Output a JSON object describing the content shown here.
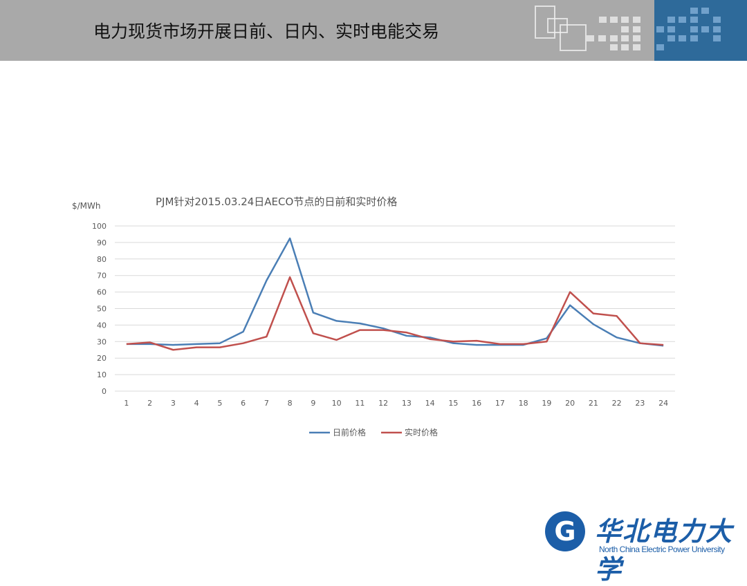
{
  "slide": {
    "title": "电力现货市场开展日前、日内、实时电能交易"
  },
  "logo": {
    "cn": "华北电力大学",
    "en": "North China Electric Power University",
    "color": "#1c5ea8"
  },
  "chart_data": {
    "type": "line",
    "title": "PJM针对2015.03.24日AECO节点的日前和实时价格",
    "ylabel": "$/MWh",
    "xlabel": "",
    "ylim": [
      0,
      100
    ],
    "yticks": [
      0,
      10,
      20,
      30,
      40,
      50,
      60,
      70,
      80,
      90,
      100
    ],
    "categories": [
      "1",
      "2",
      "3",
      "4",
      "5",
      "6",
      "7",
      "8",
      "9",
      "10",
      "11",
      "12",
      "13",
      "14",
      "15",
      "16",
      "17",
      "18",
      "19",
      "20",
      "21",
      "22",
      "23",
      "24"
    ],
    "grid": true,
    "legend": "bottom",
    "series": [
      {
        "name": "日前价格",
        "color": "#4a7eb5",
        "values": [
          28.5,
          28.5,
          28,
          28.5,
          29,
          36,
          67,
          92.5,
          47.5,
          42.5,
          41,
          38,
          33.5,
          32.5,
          29,
          28,
          28,
          28,
          32,
          52,
          40.5,
          32.5,
          29,
          27.5
        ]
      },
      {
        "name": "实时价格",
        "color": "#c0504d",
        "values": [
          28.5,
          29.5,
          25,
          26.5,
          26.5,
          29,
          33,
          69,
          35,
          31,
          37,
          37,
          35.5,
          31.5,
          30,
          30.5,
          28.5,
          28.5,
          30,
          60,
          47,
          45.5,
          29,
          28
        ]
      }
    ]
  }
}
